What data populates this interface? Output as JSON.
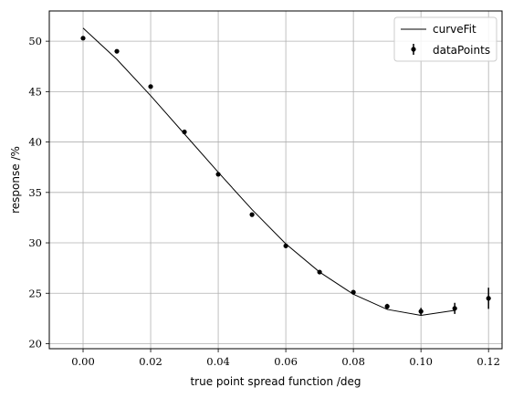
{
  "chart_data": {
    "type": "scatter",
    "xlabel": "true point spread function  /deg",
    "ylabel": "response  /%",
    "xlim": [
      -0.01,
      0.124
    ],
    "ylim": [
      19.5,
      53
    ],
    "xticks": [
      0.0,
      0.02,
      0.04,
      0.06,
      0.08,
      0.1,
      0.12
    ],
    "xtick_labels": [
      "0.00",
      "0.02",
      "0.04",
      "0.06",
      "0.08",
      "0.10",
      "0.12"
    ],
    "yticks": [
      20,
      25,
      30,
      35,
      40,
      45,
      50
    ],
    "ytick_labels": [
      "20",
      "25",
      "30",
      "35",
      "40",
      "45",
      "50"
    ],
    "grid": true,
    "legend_position": "top-right",
    "legend": [
      "curveFit",
      "dataPoints"
    ],
    "series": [
      {
        "name": "curveFit",
        "kind": "line",
        "color": "#000000",
        "x": [
          0.0,
          0.01,
          0.02,
          0.03,
          0.04,
          0.05,
          0.06,
          0.07,
          0.08,
          0.09,
          0.1,
          0.11
        ],
        "y": [
          51.3,
          48.2,
          44.6,
          40.8,
          37.0,
          33.3,
          29.9,
          27.1,
          24.9,
          23.4,
          22.8,
          23.3
        ]
      },
      {
        "name": "dataPoints",
        "kind": "errorbar",
        "color": "#000000",
        "x": [
          0.0,
          0.01,
          0.02,
          0.03,
          0.04,
          0.05,
          0.06,
          0.07,
          0.08,
          0.09,
          0.1,
          0.11,
          0.12
        ],
        "y": [
          50.3,
          49.0,
          45.5,
          41.0,
          36.8,
          32.8,
          29.7,
          27.1,
          25.1,
          23.7,
          23.2,
          23.5,
          24.5
        ],
        "yerr": [
          0.1,
          0.1,
          0.1,
          0.1,
          0.1,
          0.1,
          0.15,
          0.15,
          0.2,
          0.25,
          0.35,
          0.55,
          1.05
        ]
      }
    ]
  }
}
